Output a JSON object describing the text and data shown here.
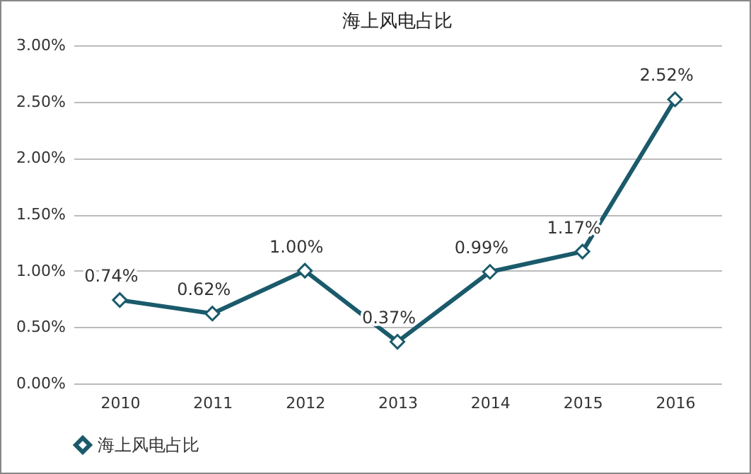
{
  "chart_data": {
    "type": "line",
    "title": "海上风电占比",
    "categories": [
      "2010",
      "2011",
      "2012",
      "2013",
      "2014",
      "2015",
      "2016"
    ],
    "series": [
      {
        "name": "海上风电占比",
        "color": "#1a5a6b",
        "values": [
          0.74,
          0.62,
          1.0,
          0.37,
          0.99,
          1.17,
          2.52
        ],
        "value_labels": [
          "0.74%",
          "0.62%",
          "1.00%",
          "0.37%",
          "0.99%",
          "1.17%",
          "2.52%"
        ]
      }
    ],
    "ylim": [
      0,
      3
    ],
    "yticks": [
      {
        "value": 0,
        "label": "0.00%"
      },
      {
        "value": 0.5,
        "label": "0.50%"
      },
      {
        "value": 1,
        "label": "1.00%"
      },
      {
        "value": 1.5,
        "label": "1.50%"
      },
      {
        "value": 2,
        "label": "2.00%"
      },
      {
        "value": 2.5,
        "label": "2.50%"
      },
      {
        "value": 3,
        "label": "3.00%"
      }
    ],
    "grid": "y",
    "legend": "bottom",
    "marker": "diamond",
    "line_style": "solid"
  }
}
